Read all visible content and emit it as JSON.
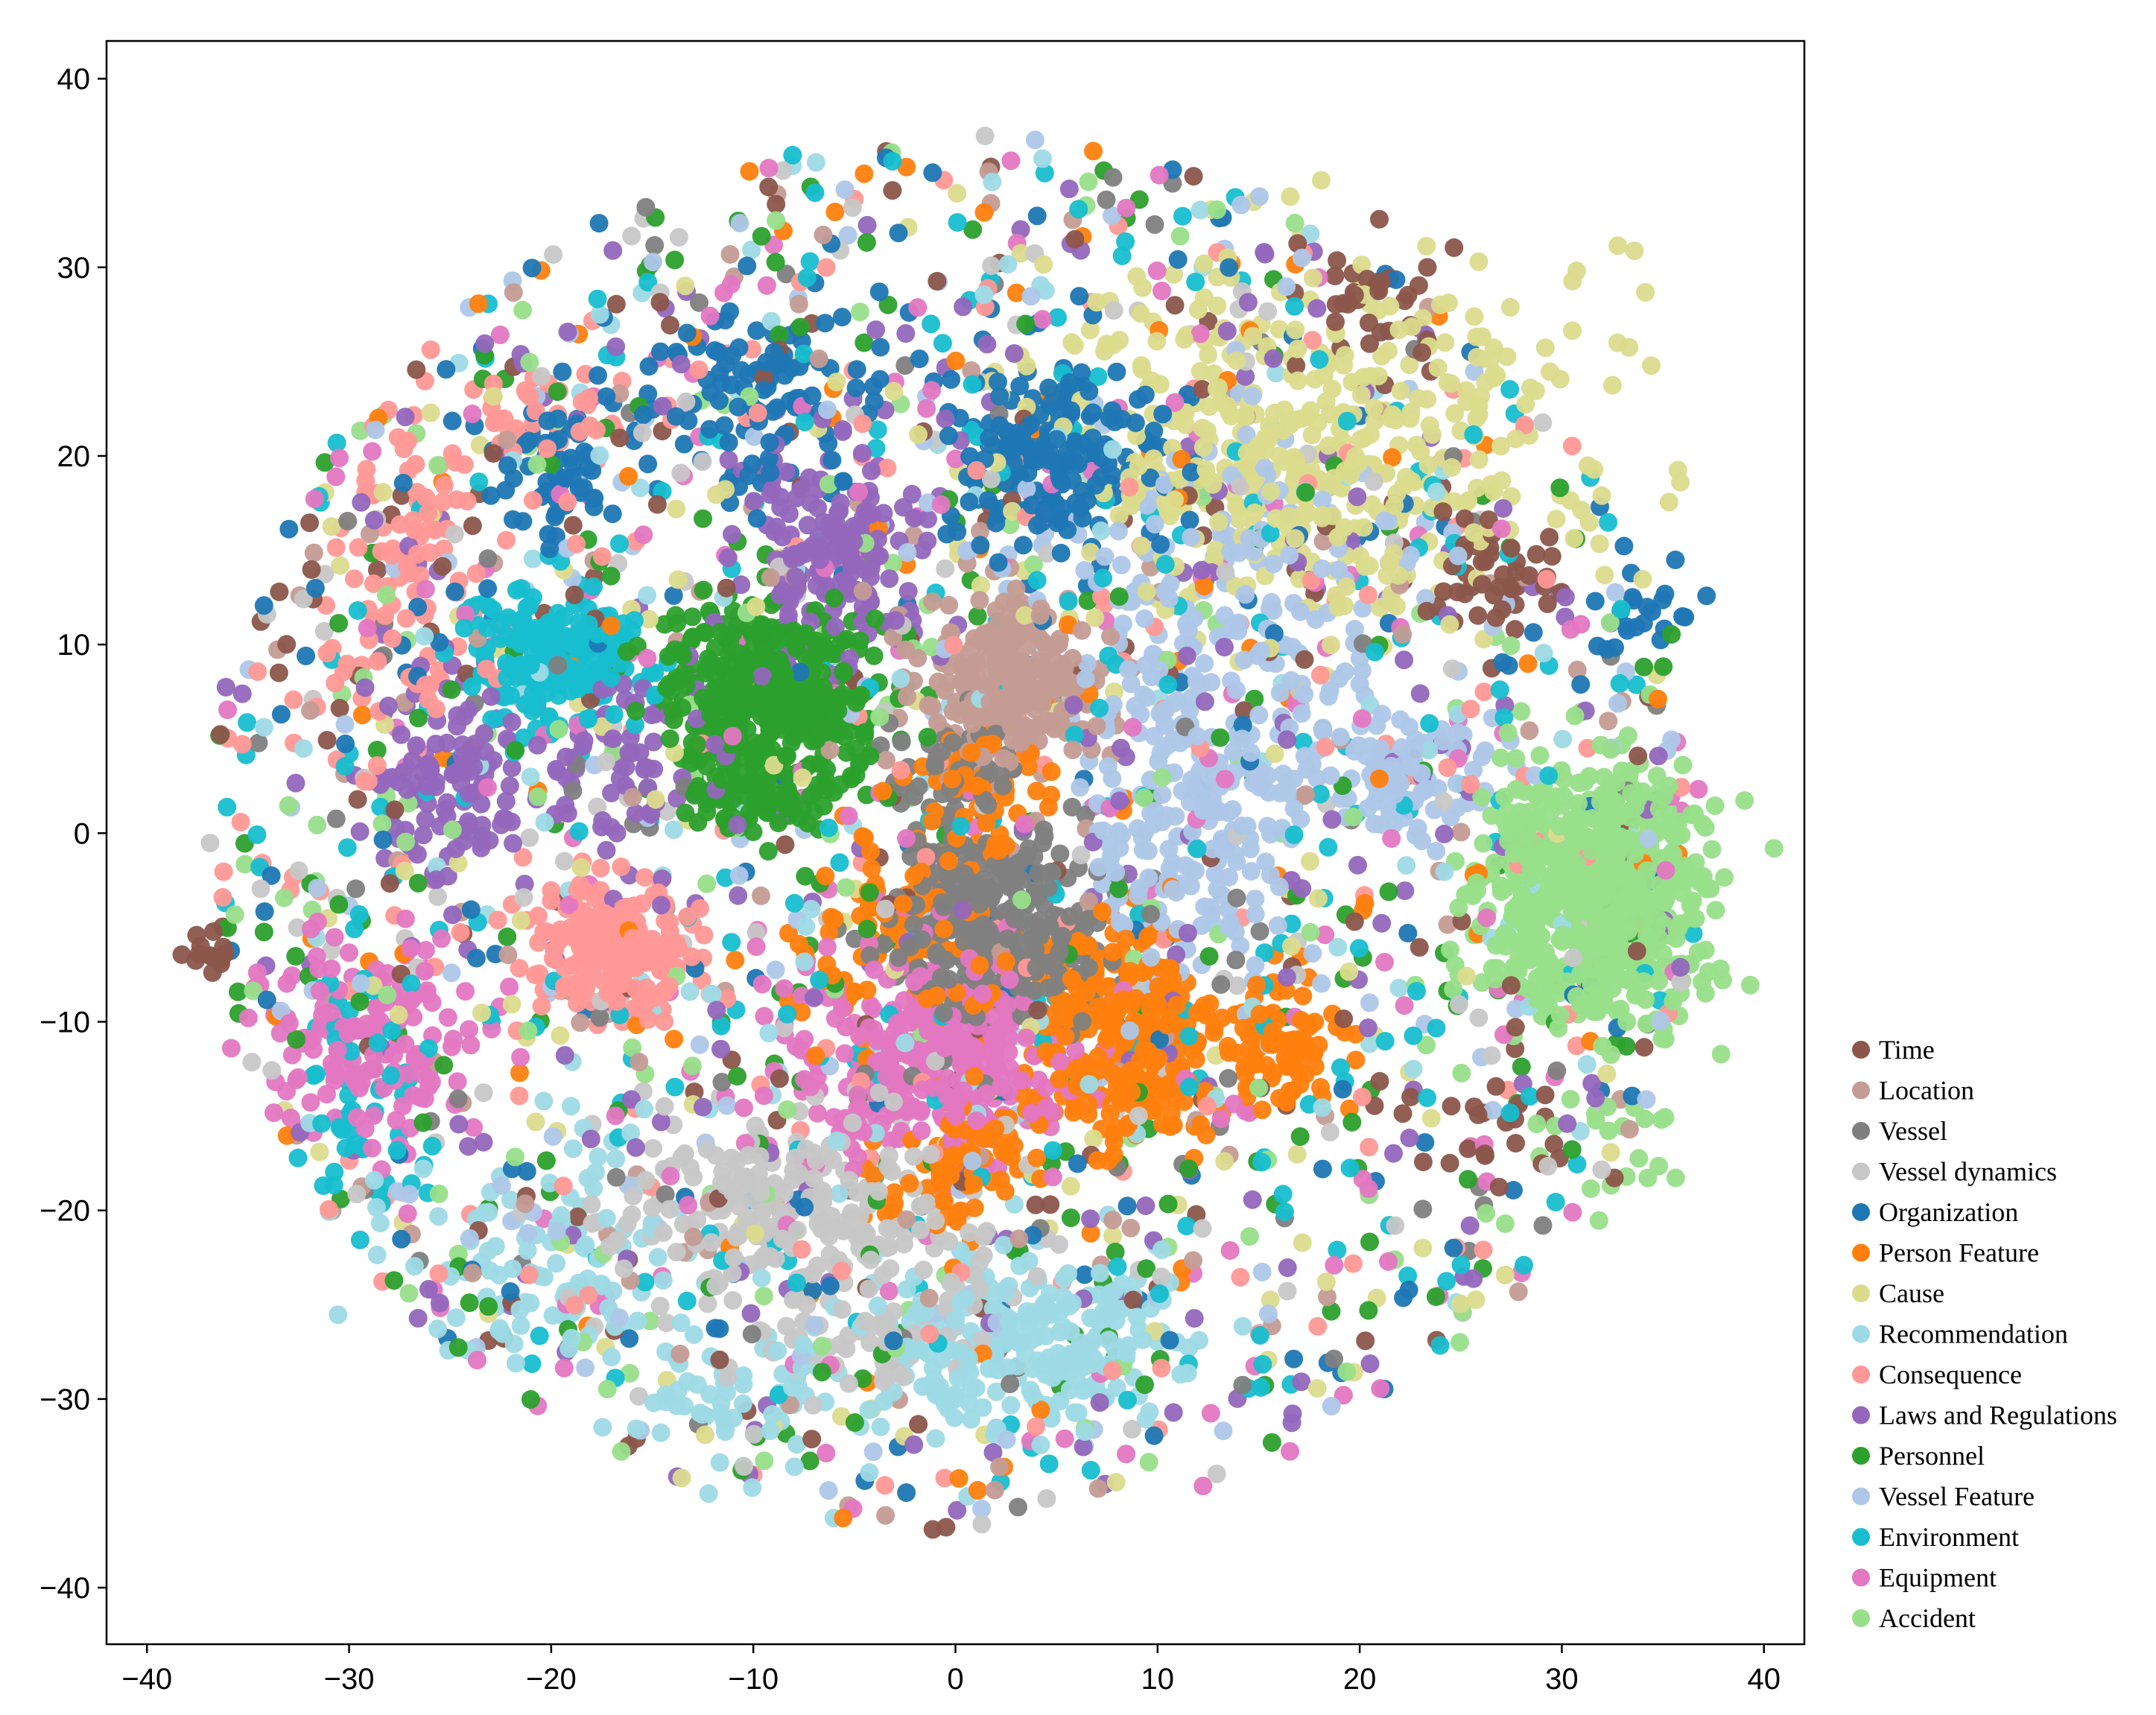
{
  "chart_data": {
    "type": "scatter",
    "title": "",
    "xlabel": "",
    "ylabel": "",
    "xlim": [
      -42,
      42
    ],
    "ylim": [
      -43,
      42
    ],
    "xticks": [
      "−40",
      "−30",
      "−20",
      "−10",
      "0",
      "10",
      "20",
      "30",
      "40"
    ],
    "yticks": [
      "40",
      "30",
      "20",
      "10",
      "0",
      "−10",
      "−20",
      "−30",
      "−40"
    ],
    "grid": false,
    "legend_position": "bottom-right, outside plot area",
    "point_count_note": "approximately 9,000 points; clusters summarized by center and spread",
    "series": [
      {
        "name": "Time",
        "color": "#8c564b",
        "clusters": [
          [
            -37,
            -6,
            0.8,
            0.8,
            14
          ],
          [
            26,
            14,
            2,
            2,
            45
          ],
          [
            21,
            28,
            2,
            2,
            30
          ],
          [
            26,
            -15,
            4,
            2,
            25
          ]
        ],
        "scatter": 170
      },
      {
        "name": "Location",
        "color": "#c49c94",
        "clusters": [
          [
            3,
            8,
            2.5,
            2.5,
            260
          ]
        ],
        "scatter": 130
      },
      {
        "name": "Vessel",
        "color": "#7f7f7f",
        "clusters": [
          [
            2,
            -5,
            3,
            2.8,
            320
          ],
          [
            0,
            3,
            2,
            1.6,
            60
          ]
        ],
        "scatter": 90
      },
      {
        "name": "Vessel dynamics",
        "color": "#c7c7c7",
        "clusters": [
          [
            -8,
            -20,
            5,
            3,
            230
          ],
          [
            -4,
            -26,
            4,
            2,
            60
          ]
        ],
        "scatter": 160
      },
      {
        "name": "Organization",
        "color": "#1f77b4",
        "clusters": [
          [
            5,
            20,
            3,
            2.5,
            190
          ],
          [
            -10,
            23,
            4,
            2.5,
            110
          ],
          [
            -20,
            19,
            2,
            2,
            50
          ],
          [
            34,
            12,
            1.5,
            1.5,
            20
          ]
        ],
        "scatter": 170
      },
      {
        "name": "Person Feature",
        "color": "#ff7f0e",
        "clusters": [
          [
            8,
            -11,
            3,
            3.5,
            320
          ],
          [
            16,
            -11,
            1.8,
            1.8,
            80
          ],
          [
            0,
            -18,
            2,
            2,
            70
          ],
          [
            -2,
            -6,
            3,
            3,
            90
          ],
          [
            1,
            2,
            2,
            2,
            50
          ]
        ],
        "scatter": 110
      },
      {
        "name": "Cause",
        "color": "#dbdb8d",
        "clusters": [
          [
            17,
            21,
            8,
            5.5,
            460
          ]
        ],
        "scatter": 140
      },
      {
        "name": "Recommendation",
        "color": "#9edae5",
        "clusters": [
          [
            3,
            -27,
            4,
            2.5,
            240
          ],
          [
            -10,
            -30,
            3,
            2,
            60
          ],
          [
            -20,
            -23,
            4,
            3,
            100
          ]
        ],
        "scatter": 160
      },
      {
        "name": "Consequence",
        "color": "#ff9896",
        "clusters": [
          [
            -17,
            -6,
            2.2,
            1.8,
            200
          ],
          [
            -27,
            15,
            2,
            5,
            90
          ],
          [
            -20,
            22,
            3,
            1.5,
            40
          ]
        ],
        "scatter": 180
      },
      {
        "name": "Laws and Regulations",
        "color": "#9467bd",
        "clusters": [
          [
            -6,
            15,
            2.5,
            3,
            170
          ],
          [
            -25,
            3,
            2.5,
            3,
            110
          ],
          [
            -16,
            4,
            3,
            3,
            70
          ]
        ],
        "scatter": 240
      },
      {
        "name": "Personnel",
        "color": "#2ca02c",
        "clusters": [
          [
            -9,
            7,
            3,
            3,
            450
          ],
          [
            -10,
            2,
            1.5,
            1.2,
            60
          ]
        ],
        "scatter": 210
      },
      {
        "name": "Vessel Feature",
        "color": "#aec7e8",
        "clusters": [
          [
            12,
            1,
            3,
            5,
            220
          ],
          [
            14,
            14,
            5,
            5,
            150
          ],
          [
            22,
            3,
            2.5,
            2,
            90
          ]
        ],
        "scatter": 160
      },
      {
        "name": "Environment",
        "color": "#17becf",
        "clusters": [
          [
            -20,
            9,
            2.5,
            2,
            200
          ],
          [
            -29,
            -14,
            2,
            4,
            40
          ]
        ],
        "scatter": 280
      },
      {
        "name": "Equipment",
        "color": "#e377c2",
        "clusters": [
          [
            0,
            -12,
            3,
            2.5,
            230
          ],
          [
            -29,
            -11,
            3,
            3,
            140
          ],
          [
            -5,
            -12,
            4,
            4,
            100
          ]
        ],
        "scatter": 200
      },
      {
        "name": "Accident",
        "color": "#98df8a",
        "clusters": [
          [
            31.5,
            -3,
            3.2,
            3.5,
            650
          ],
          [
            33,
            -17,
            2,
            2,
            20
          ]
        ],
        "scatter": 150
      }
    ]
  }
}
